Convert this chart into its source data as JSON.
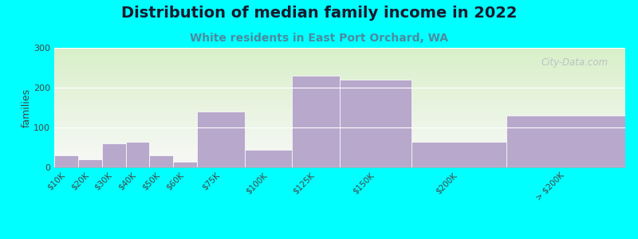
{
  "title": "Distribution of median family income in 2022",
  "subtitle": "White residents in East Port Orchard, WA",
  "ylabel": "families",
  "background_outer": "#00FFFF",
  "bar_color": "#b8a8cc",
  "categories": [
    "$10K",
    "$20K",
    "$30K",
    "$40K",
    "$50K",
    "$60K",
    "$75K",
    "$100K",
    "$125K",
    "$150K",
    "$200K",
    "> $200K"
  ],
  "values": [
    30,
    20,
    60,
    65,
    30,
    15,
    140,
    45,
    230,
    220,
    65,
    130
  ],
  "bar_lefts": [
    0,
    1,
    2,
    3,
    4,
    5,
    6,
    8,
    10,
    12,
    15,
    19
  ],
  "bar_widths": [
    1,
    1,
    1,
    1,
    1,
    1,
    2,
    2,
    2,
    3,
    4,
    5
  ],
  "xlim": [
    0,
    24
  ],
  "tick_positions": [
    0.5,
    1.5,
    2.5,
    3.5,
    4.5,
    5.5,
    7,
    9,
    11,
    13.5,
    17,
    21.5
  ],
  "ylim": [
    0,
    300
  ],
  "yticks": [
    0,
    100,
    200,
    300
  ],
  "title_fontsize": 14,
  "subtitle_fontsize": 10,
  "ylabel_fontsize": 9,
  "watermark": "City-Data.com"
}
